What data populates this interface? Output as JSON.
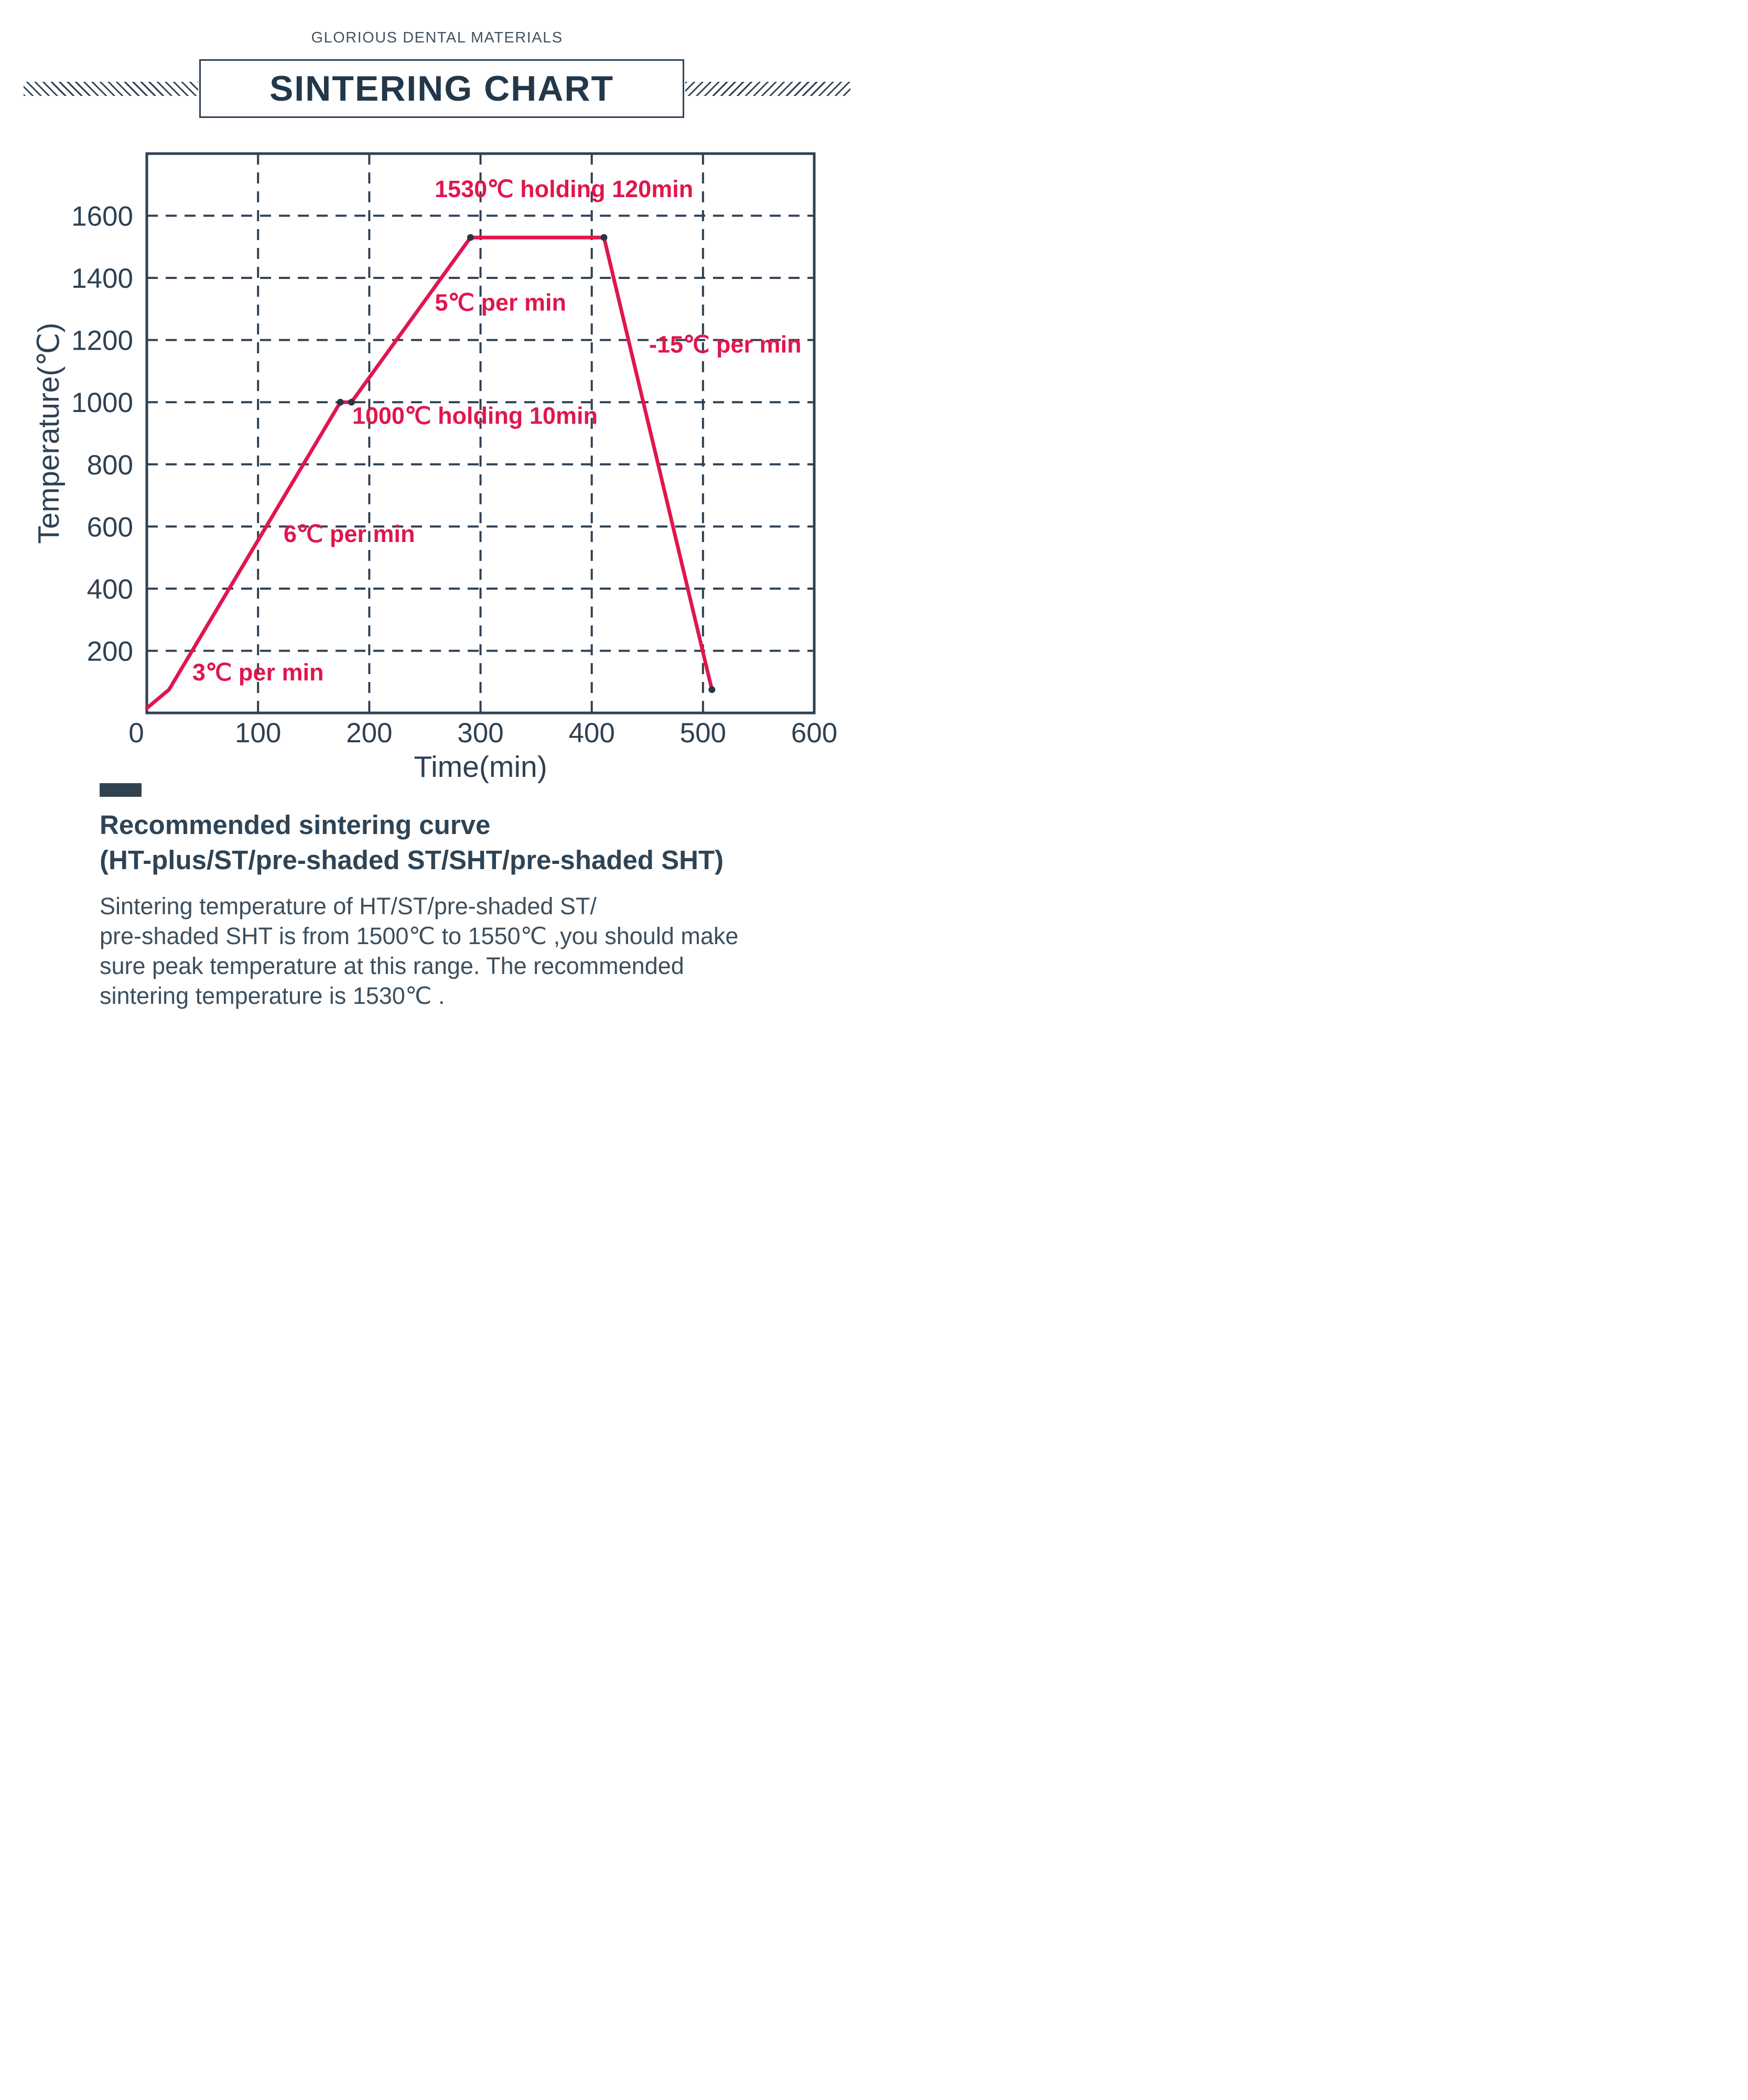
{
  "colors": {
    "navy": "#2e4154",
    "crimson": "#e0164e"
  },
  "header": {
    "brand": "GLORIOUS DENTAL MATERIALS",
    "title": "SINTERING CHART"
  },
  "chart_data": {
    "type": "line",
    "title": "",
    "xlabel": "Time(min)",
    "ylabel": "Temperature(℃)",
    "xlim": [
      0,
      600
    ],
    "ylim": [
      0,
      1800
    ],
    "xticks": [
      0,
      100,
      200,
      300,
      400,
      500,
      600
    ],
    "yticks": [
      200,
      400,
      600,
      800,
      1000,
      1200,
      1400,
      1600
    ],
    "grid": "dashed",
    "legend": "none",
    "line_color": "#e0164e",
    "annotation_color": "#e0164e",
    "points": [
      [
        0,
        15
      ],
      [
        20,
        75
      ],
      [
        174,
        1000
      ],
      [
        184,
        1000
      ],
      [
        291,
        1530
      ],
      [
        411,
        1530
      ],
      [
        508,
        75
      ]
    ],
    "markers": [
      [
        174,
        1000
      ],
      [
        184,
        1000
      ],
      [
        291,
        1530
      ],
      [
        411,
        1530
      ],
      [
        508,
        75
      ]
    ],
    "annotations": [
      {
        "text": "1530℃ holding 120min",
        "x": 375,
        "y": 1660,
        "anchor": "middle"
      },
      {
        "text": "5℃ per min",
        "x": 318,
        "y": 1295,
        "anchor": "middle"
      },
      {
        "text": "-15℃ per min",
        "x": 520,
        "y": 1160,
        "anchor": "middle"
      },
      {
        "text": "1000℃ holding 10min",
        "x": 295,
        "y": 930,
        "anchor": "middle"
      },
      {
        "text": "6℃ per min",
        "x": 182,
        "y": 550,
        "anchor": "middle"
      },
      {
        "text": "3℃ per min",
        "x": 100,
        "y": 105,
        "anchor": "middle"
      }
    ]
  },
  "footer": {
    "heading_line1": "Recommended sintering curve",
    "heading_line2": "(HT-plus/ST/pre-shaded ST/SHT/pre-shaded SHT)",
    "paragraph_lines": [
      "Sintering temperature of HT/ST/pre-shaded ST/",
      "pre-shaded SHT is from 1500℃ to 1550℃ ,you should make",
      "sure peak temperature at this range. The recommended",
      "sintering temperature is 1530℃ ."
    ]
  }
}
